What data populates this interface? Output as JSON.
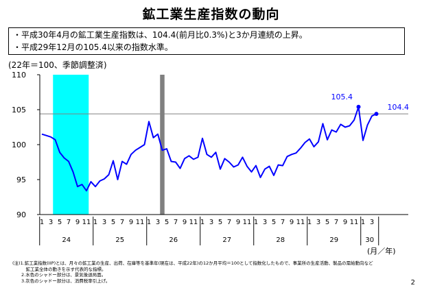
{
  "title": "鉱工業生産指数の動向",
  "summary": [
    "・平成30年4月の鉱工業生産指数は、104.4(前月比0.3%)と3か月連続の上昇。",
    "・平成29年12月の105.4以来の指数水準。"
  ],
  "unit_note": "(22年＝100、季節調整済)",
  "axis_unit_label": "(月／年)",
  "notes": [
    "(注)1.鉱工業指数(IIP)とは、月々の鉱工業の生産、出荷、在庫等を基準年(現在は、平成22年)の12か月平均＝100として指数化したもので、事業所の生産活動、製品の需給動向など",
    "　　　鉱工業全体の動きを示す代表的な指標。",
    "　　2.水色のシャドー部分は、景気後退局面。",
    "　　3.灰色のシャドー部分は、消費税率引上げ。"
  ],
  "page_number": "2",
  "colors": {
    "line": "#0000ff",
    "recession": "#00ffff",
    "tax": "#808080",
    "reference": "#808080"
  },
  "chart_data": {
    "type": "line",
    "ylim": [
      90,
      110
    ],
    "yticks": [
      90,
      95,
      100,
      105,
      110
    ],
    "years": [
      "24",
      "25",
      "26",
      "27",
      "28",
      "29",
      "30"
    ],
    "month_ticks": [
      "1",
      "3",
      "5",
      "7",
      "9",
      "11"
    ],
    "x_start": "2012-01",
    "series": [
      {
        "values": [
          101.5,
          101.3,
          101.1,
          100.7,
          98.9,
          98.1,
          97.6,
          96.1,
          94.0,
          94.3,
          93.4,
          94.7,
          94.0,
          94.8,
          95.1,
          95.7,
          97.7,
          95.0,
          97.6,
          97.2,
          98.6,
          99.2,
          99.6,
          100.0,
          103.3,
          101.0,
          101.5,
          99.2,
          99.4,
          97.6,
          97.5,
          96.6,
          98.0,
          98.4,
          97.9,
          98.2,
          100.9,
          98.6,
          98.2,
          98.9,
          96.5,
          98.0,
          97.5,
          96.8,
          97.1,
          98.2,
          96.9,
          96.1,
          97.0,
          95.3,
          96.5,
          96.9,
          95.6,
          97.1,
          97.0,
          98.3,
          98.6,
          98.8,
          99.5,
          100.3,
          100.8,
          99.7,
          100.4,
          103.0,
          100.7,
          102.1,
          101.8,
          102.9,
          102.5,
          102.7,
          103.5,
          105.4,
          100.6,
          102.8,
          104.1,
          104.4
        ]
      }
    ],
    "reference_line": 104.4,
    "annotations": [
      {
        "label": "105.4",
        "month": "2017-12",
        "value": 105.4
      },
      {
        "label": "104.4",
        "month": "2018-04",
        "value": 104.4
      }
    ],
    "shaded": [
      {
        "name": "recession",
        "start": "2012-04",
        "end": "2012-11"
      },
      {
        "name": "tax",
        "start": "2014-04",
        "end": "2014-04"
      }
    ]
  }
}
